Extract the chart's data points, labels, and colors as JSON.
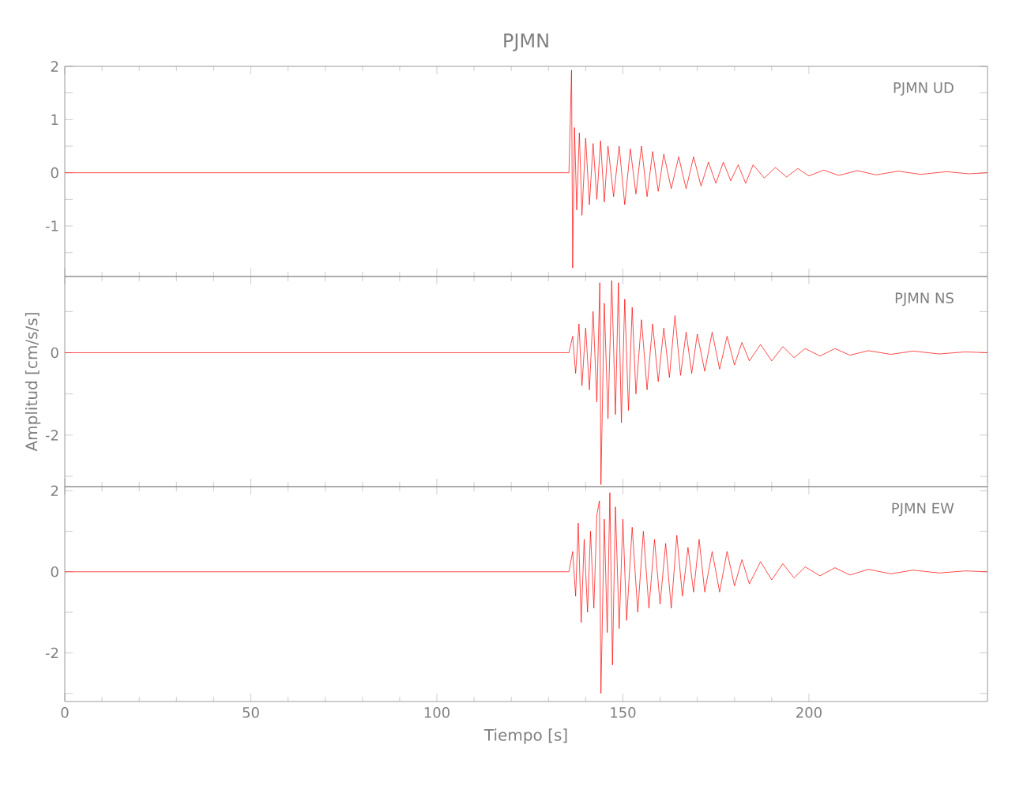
{
  "chart_data": [
    {
      "type": "line",
      "title": "PJMN",
      "annotations": [
        "PJMN   UD"
      ],
      "xlim": [
        0,
        248
      ],
      "xticks": [
        0,
        50,
        100,
        150,
        200
      ],
      "tick_labels": "y",
      "ylim": [
        -1.95,
        2
      ],
      "yticks": [
        2,
        {
          "value": 1.5,
          "label": null
        },
        1,
        {
          "value": 0.5,
          "label": null
        },
        0,
        {
          "value": -0.5,
          "label": null
        },
        -1,
        {
          "value": -1.5,
          "label": null
        }
      ],
      "series": [
        {
          "color": "#ff0000",
          "x": [
            0,
            135.5,
            136.2,
            136.5,
            137,
            137.6,
            138.3,
            139,
            140,
            141,
            142,
            143,
            144,
            145,
            146,
            147.5,
            149,
            150.5,
            152,
            153.5,
            155,
            156.5,
            158,
            159.5,
            161,
            163,
            165,
            167,
            169,
            171,
            173,
            175,
            177,
            179,
            181,
            183,
            185,
            188,
            191,
            194,
            197,
            200,
            204,
            208,
            213,
            218,
            224,
            230,
            237,
            243,
            248
          ],
          "values": [
            0,
            0,
            1.93,
            -1.79,
            0.85,
            -0.7,
            0.75,
            -0.8,
            0.65,
            -0.6,
            0.55,
            -0.5,
            0.6,
            -0.55,
            0.5,
            -0.45,
            0.5,
            -0.6,
            0.45,
            -0.4,
            0.5,
            -0.45,
            0.4,
            -0.35,
            0.35,
            -0.3,
            0.3,
            -0.3,
            0.3,
            -0.25,
            0.2,
            -0.2,
            0.2,
            -0.15,
            0.15,
            -0.2,
            0.15,
            -0.1,
            0.1,
            -0.08,
            0.08,
            -0.06,
            0.05,
            -0.05,
            0.04,
            -0.04,
            0.03,
            -0.03,
            0.02,
            -0.02,
            0
          ]
        }
      ]
    },
    {
      "type": "line",
      "ylabel": "Amplitud [cm/s/s]",
      "annotations": [
        "PJMN   NS"
      ],
      "xlim": [
        0,
        248
      ],
      "xticks": [
        0,
        50,
        100,
        150,
        200
      ],
      "tick_labels": "y",
      "ylim": [
        -3.25,
        1.85
      ],
      "yticks": [
        {
          "value": 1,
          "label": null
        },
        0,
        {
          "value": -1,
          "label": null
        },
        -2,
        {
          "value": -3,
          "label": null
        }
      ],
      "series": [
        {
          "color": "#ff0000",
          "x": [
            0,
            135.5,
            136.5,
            137.3,
            138.2,
            139,
            140,
            141,
            142,
            143,
            143.8,
            144.1,
            145,
            146,
            147,
            148,
            148.8,
            149.6,
            150.5,
            151.5,
            152.5,
            153.5,
            155,
            156.5,
            158,
            159.5,
            161,
            162.5,
            164,
            165.5,
            167,
            168.5,
            170,
            172,
            174,
            176,
            178,
            180,
            182,
            184,
            187,
            190,
            193,
            196,
            199,
            203,
            207,
            211,
            216,
            222,
            228,
            235,
            242,
            248
          ],
          "values": [
            0,
            0,
            0.4,
            -0.5,
            0.7,
            -0.8,
            0.6,
            -0.9,
            1.0,
            -1.2,
            1.7,
            -3.2,
            1.2,
            -1.6,
            1.75,
            -1.5,
            1.7,
            -1.7,
            1.3,
            -1.4,
            1.1,
            -1.0,
            0.8,
            -0.9,
            0.7,
            -0.7,
            0.6,
            -0.6,
            0.9,
            -0.55,
            0.5,
            -0.5,
            0.45,
            -0.45,
            0.5,
            -0.4,
            0.4,
            -0.3,
            0.25,
            -0.2,
            0.2,
            -0.2,
            0.15,
            -0.12,
            0.1,
            -0.08,
            0.1,
            -0.06,
            0.05,
            -0.04,
            0.04,
            -0.03,
            0.02,
            0
          ]
        }
      ]
    },
    {
      "type": "line",
      "xlabel": "Tiempo [s]",
      "annotations": [
        "PJMN   EW"
      ],
      "xlim": [
        0,
        248
      ],
      "xticks": [
        0,
        50,
        100,
        150,
        200
      ],
      "ylim": [
        -3.2,
        2.1
      ],
      "yticks": [
        2,
        {
          "value": 1,
          "label": null
        },
        0,
        {
          "value": -1,
          "label": null
        },
        -2,
        {
          "value": -3,
          "label": null
        }
      ],
      "series": [
        {
          "color": "#ff0000",
          "x": [
            0,
            135.5,
            136.5,
            137.3,
            138,
            138.8,
            139.6,
            140.5,
            141.3,
            142.2,
            143,
            143.7,
            144.1,
            145,
            145.8,
            146.5,
            147.2,
            148,
            149,
            150,
            151,
            152.5,
            154,
            155.5,
            157,
            158.5,
            160,
            161.5,
            163,
            164.5,
            166,
            167.5,
            169,
            170.5,
            172,
            174,
            176,
            178,
            180,
            182,
            184,
            187,
            190,
            193,
            196,
            199,
            203,
            207,
            211,
            216,
            222,
            228,
            235,
            242,
            248
          ],
          "values": [
            0,
            0,
            0.5,
            -0.6,
            1.2,
            -1.25,
            0.8,
            -1.0,
            1.0,
            -0.9,
            1.4,
            1.75,
            -3.0,
            1.3,
            -1.5,
            1.95,
            -2.3,
            1.6,
            -1.4,
            1.3,
            -1.2,
            1.1,
            -1.0,
            1.0,
            -0.9,
            0.8,
            -0.8,
            0.7,
            -0.9,
            0.9,
            -0.6,
            0.6,
            -0.5,
            0.8,
            -0.5,
            0.5,
            -0.5,
            0.5,
            -0.35,
            0.3,
            -0.3,
            0.25,
            -0.2,
            0.2,
            -0.15,
            0.12,
            -0.1,
            0.1,
            -0.08,
            0.06,
            -0.05,
            0.04,
            -0.03,
            0.02,
            0
          ]
        }
      ]
    }
  ]
}
